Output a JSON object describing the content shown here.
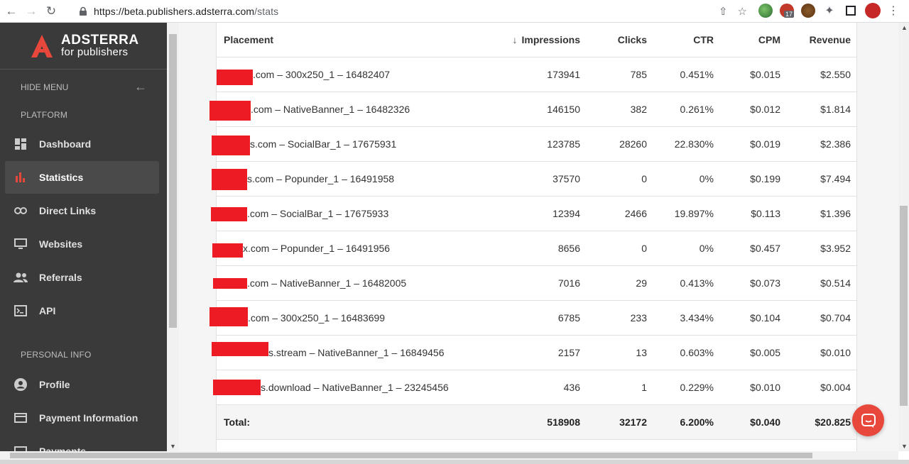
{
  "browser": {
    "url_host": "https://beta.publishers.adsterra.com",
    "url_path": "/stats",
    "extension_badge": "17"
  },
  "sidebar": {
    "brand_name": "ADSTERRA",
    "brand_sub": "for publishers",
    "hide_menu": "HIDE MENU",
    "platform_label": "PLATFORM",
    "personal_label": "PERSONAL INFO",
    "items": [
      {
        "label": "Dashboard",
        "icon": "dashboard-icon"
      },
      {
        "label": "Statistics",
        "icon": "bar-chart-icon",
        "active": true
      },
      {
        "label": "Direct Links",
        "icon": "link-icon"
      },
      {
        "label": "Websites",
        "icon": "monitor-icon"
      },
      {
        "label": "Referrals",
        "icon": "people-icon"
      },
      {
        "label": "API",
        "icon": "terminal-icon"
      }
    ],
    "personal_items": [
      {
        "label": "Profile",
        "icon": "account-circle-icon"
      },
      {
        "label": "Payment Information",
        "icon": "payment-icon"
      },
      {
        "label": "Payments",
        "icon": "payments-icon"
      }
    ]
  },
  "table": {
    "headers": {
      "placement": "Placement",
      "impressions": "Impressions",
      "clicks": "Clicks",
      "ctr": "CTR",
      "cpm": "CPM",
      "revenue": "Revenue"
    },
    "rows": [
      {
        "placement": ".com – 300x250_1 – 16482407",
        "impressions": "173941",
        "clicks": "785",
        "ctr": "0.451%",
        "cpm": "$0.015",
        "revenue": "$2.550"
      },
      {
        "placement": ".com – NativeBanner_1 – 16482326",
        "impressions": "146150",
        "clicks": "382",
        "ctr": "0.261%",
        "cpm": "$0.012",
        "revenue": "$1.814"
      },
      {
        "placement": "s.com – SocialBar_1 – 17675931",
        "impressions": "123785",
        "clicks": "28260",
        "ctr": "22.830%",
        "cpm": "$0.019",
        "revenue": "$2.386"
      },
      {
        "placement": "s.com – Popunder_1 – 16491958",
        "impressions": "37570",
        "clicks": "0",
        "ctr": "0%",
        "cpm": "$0.199",
        "revenue": "$7.494"
      },
      {
        "placement": ".com – SocialBar_1 – 17675933",
        "impressions": "12394",
        "clicks": "2466",
        "ctr": "19.897%",
        "cpm": "$0.113",
        "revenue": "$1.396"
      },
      {
        "placement": "x.com – Popunder_1 – 16491956",
        "impressions": "8656",
        "clicks": "0",
        "ctr": "0%",
        "cpm": "$0.457",
        "revenue": "$3.952"
      },
      {
        "placement": ".com – NativeBanner_1 – 16482005",
        "impressions": "7016",
        "clicks": "29",
        "ctr": "0.413%",
        "cpm": "$0.073",
        "revenue": "$0.514"
      },
      {
        "placement": ".com – 300x250_1 – 16483699",
        "impressions": "6785",
        "clicks": "233",
        "ctr": "3.434%",
        "cpm": "$0.104",
        "revenue": "$0.704"
      },
      {
        "placement": "s.stream – NativeBanner_1 – 16849456",
        "impressions": "2157",
        "clicks": "13",
        "ctr": "0.603%",
        "cpm": "$0.005",
        "revenue": "$0.010"
      },
      {
        "placement": "s.download – NativeBanner_1 – 23245456",
        "impressions": "436",
        "clicks": "1",
        "ctr": "0.229%",
        "cpm": "$0.010",
        "revenue": "$0.004"
      }
    ],
    "total": {
      "label": "Total:",
      "impressions": "518908",
      "clicks": "32172",
      "ctr": "6.200%",
      "cpm": "$0.040",
      "revenue": "$20.825"
    }
  },
  "colors": {
    "brand_red": "#e8483b",
    "redaction": "#ed1c24",
    "sidebar_bg": "#3a3a3a"
  }
}
